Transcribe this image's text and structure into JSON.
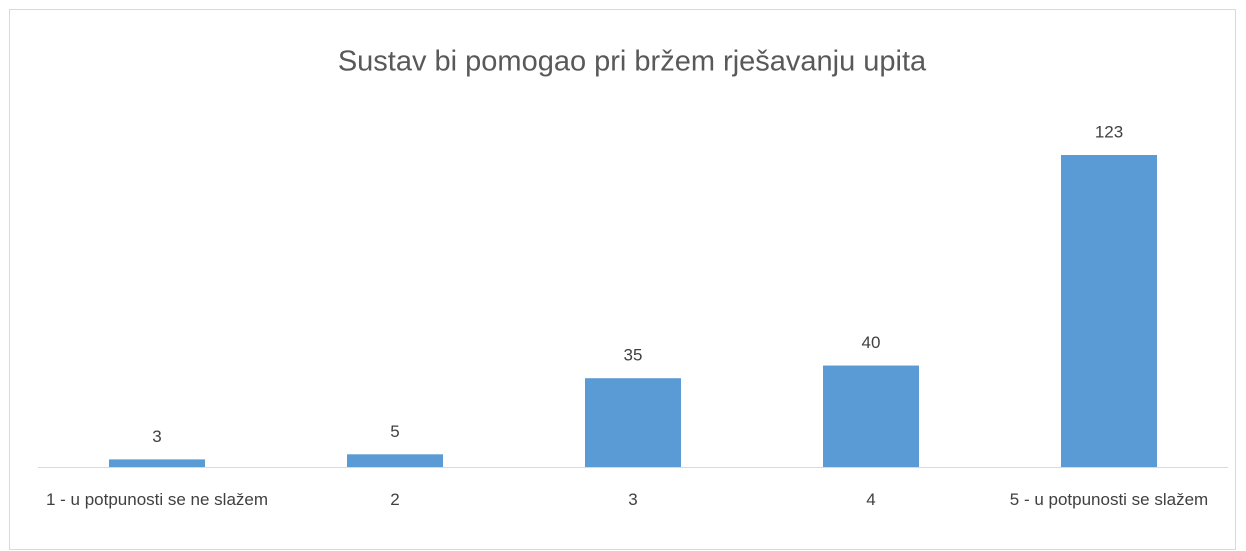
{
  "chart_data": {
    "type": "bar",
    "title": "Sustav bi pomogao pri bržem rješavanju upita",
    "categories": [
      "1 - u potpunosti se ne slažem",
      "2",
      "3",
      "4",
      "5 - u potpunosti se slažem"
    ],
    "values": [
      3,
      5,
      35,
      40,
      123
    ],
    "color": "#5b9bd5"
  }
}
